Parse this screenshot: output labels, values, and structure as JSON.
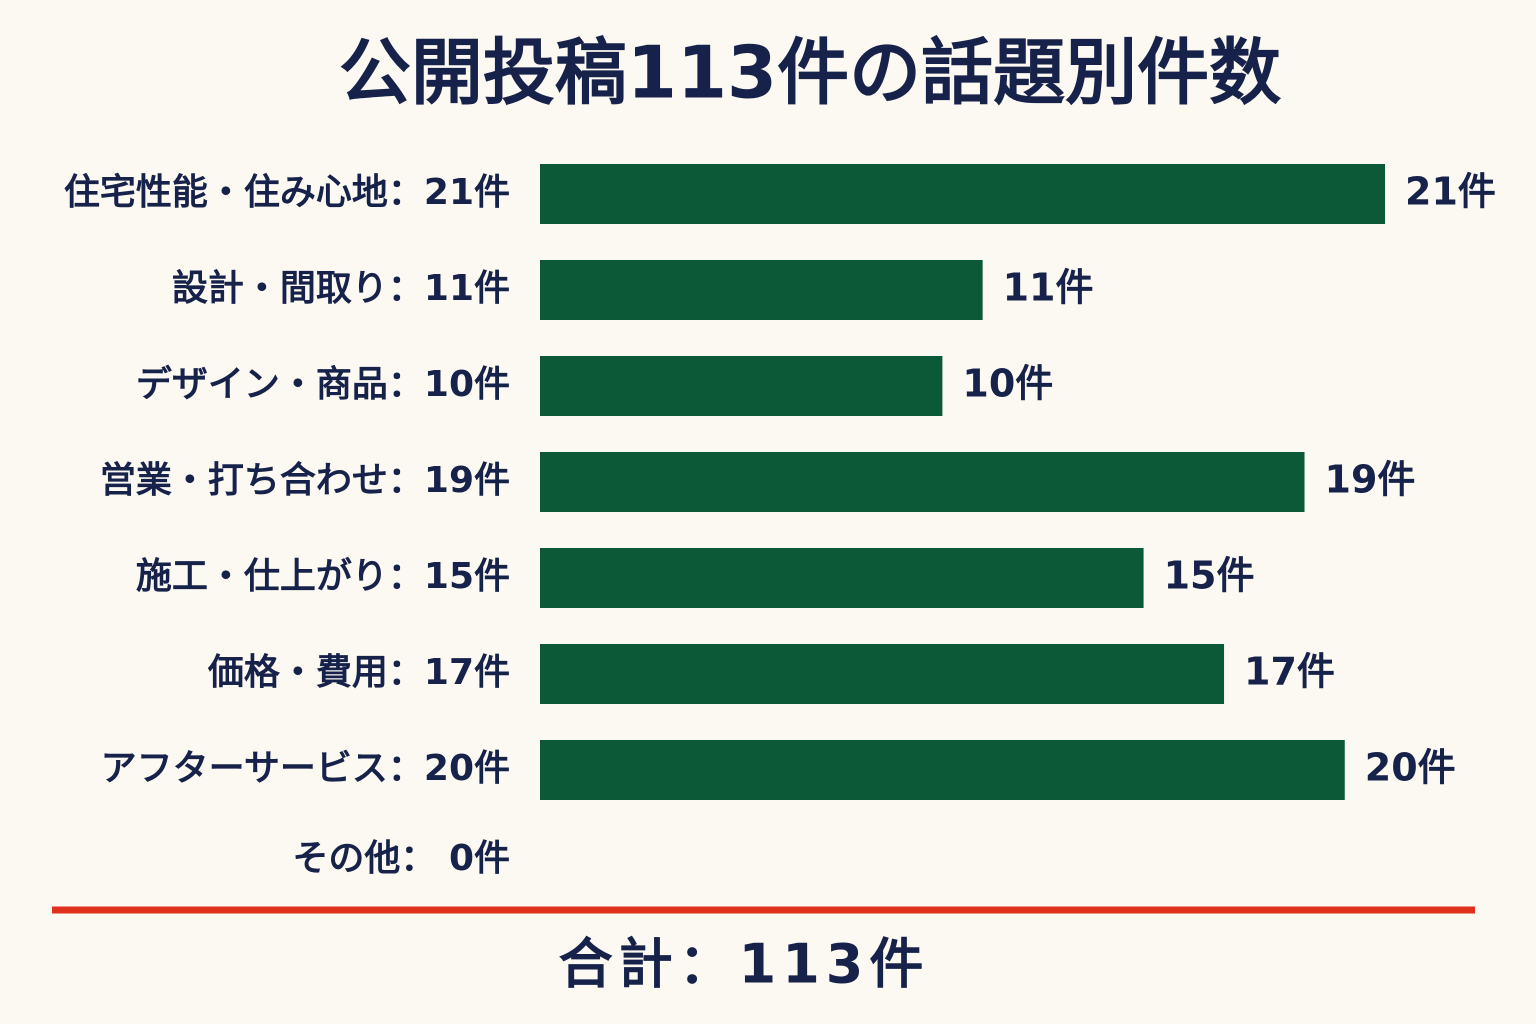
{
  "chart_data": {
    "type": "bar",
    "orientation": "horizontal",
    "title": "公開投稿113件の話題別件数",
    "categories": [
      "住宅性能・住み心地：21件",
      "設計・間取り：11件",
      "デザイン・商品：10件",
      "営業・打ち合わせ：19件",
      "施工・仕上がり：15件",
      "価格・費用：17件",
      "アフターサービス：20件",
      "その他： 0件"
    ],
    "values": [
      21,
      11,
      10,
      19,
      15,
      17,
      20,
      0
    ],
    "value_labels": [
      "21件",
      "11件",
      "10件",
      "19件",
      "15件",
      "17件",
      "20件",
      null
    ],
    "color": "#0b5a35",
    "total_label": "合計：113件"
  }
}
